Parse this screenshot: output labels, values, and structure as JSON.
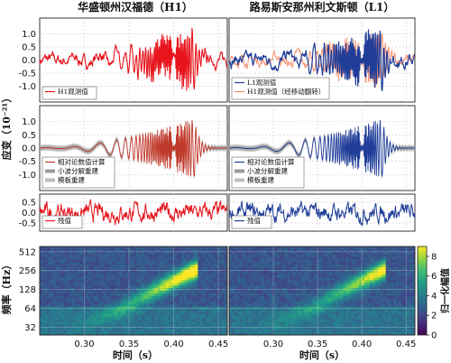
{
  "figure": {
    "title_left": "华盛顿州汉福德（H1）",
    "title_right": "路易斯安那州利文斯顿（L1）",
    "ylabel_strain": "应变（10⁻²¹）",
    "ylabel_freq": "频率（Hz）",
    "xlabel": "时间（s）",
    "colorbar_label": "归一化幅值"
  },
  "colors": {
    "h1": "#e8141c",
    "l1": "#1f3d99",
    "h1_shifted": "#f58a6a",
    "nr": "#c0392b",
    "wavelet_band": "#9a9a9a",
    "template_band": "#bdbdbd"
  },
  "chart_data": [
    {
      "id": "row1-left",
      "type": "line",
      "series": [
        {
          "name": "H1观测值",
          "color": "h1"
        }
      ],
      "ylim": [
        -1.6,
        1.6
      ],
      "yticks": [
        "1.0",
        "0.5",
        "0.0",
        "-0.5",
        "-1.0"
      ],
      "xlim": [
        0.25,
        0.46
      ],
      "grid": true,
      "legend": "bottom-left"
    },
    {
      "id": "row1-right",
      "type": "line",
      "series": [
        {
          "name": "L1观测值",
          "color": "l1"
        },
        {
          "name": "H1观测值（经移动翻转）",
          "color": "h1_shifted"
        }
      ],
      "ylim": [
        -1.6,
        1.6
      ],
      "xlim": [
        0.25,
        0.46
      ],
      "grid": true,
      "legend": "bottom-left"
    },
    {
      "id": "row2-left",
      "type": "line",
      "series": [
        {
          "name": "相对论数值计算"
        },
        {
          "name": "小波分解重建"
        },
        {
          "name": "模板重建"
        }
      ],
      "ylim": [
        -1.6,
        1.6
      ],
      "yticks": [
        "1.0",
        "0.5",
        "0.0",
        "-0.5",
        "-1.0"
      ],
      "xlim": [
        0.25,
        0.46
      ],
      "grid": true,
      "legend": "bottom-left"
    },
    {
      "id": "row2-right",
      "type": "line",
      "series": [
        {
          "name": "相对论数值计算"
        },
        {
          "name": "小波分解重建"
        },
        {
          "name": "模板重建"
        }
      ],
      "ylim": [
        -1.6,
        1.6
      ],
      "xlim": [
        0.25,
        0.46
      ],
      "grid": true,
      "legend": "bottom-left"
    },
    {
      "id": "row3-left",
      "type": "line",
      "series": [
        {
          "name": "残值",
          "color": "h1"
        }
      ],
      "ylim": [
        -0.9,
        0.9
      ],
      "yticks": [
        "0.5",
        "0.0",
        "-0.5"
      ],
      "xlim": [
        0.25,
        0.46
      ],
      "grid": true,
      "legend": "bottom-left"
    },
    {
      "id": "row3-right",
      "type": "line",
      "series": [
        {
          "name": "残值",
          "color": "l1"
        }
      ],
      "ylim": [
        -0.9,
        0.9
      ],
      "xlim": [
        0.25,
        0.46
      ],
      "grid": true,
      "legend": "bottom-left"
    },
    {
      "id": "row4",
      "type": "heatmap",
      "x_ticks": [
        "0.30",
        "0.35",
        "0.40",
        "0.45"
      ],
      "xlim": [
        0.25,
        0.46
      ],
      "y_ticks": [
        "512",
        "256",
        "128",
        "64",
        "32"
      ],
      "y_scale": "log2",
      "colorbar": {
        "min": 0,
        "max": 9,
        "ticks": [
          "8",
          "6",
          "4",
          "2",
          "0"
        ],
        "colormap": "viridis"
      }
    }
  ],
  "chirp": {
    "t0": 0.423,
    "f_start": 33,
    "f_end": 250,
    "peak": 1.1
  }
}
